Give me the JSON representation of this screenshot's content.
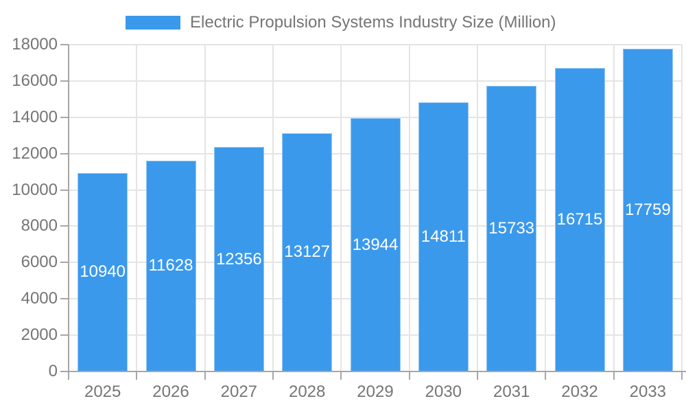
{
  "legend": {
    "label": "Electric Propulsion Systems Industry Size (Million)",
    "swatch_color": "#3B99EC"
  },
  "chart_data": {
    "type": "bar",
    "title": "Electric Propulsion Systems Industry Size (Million)",
    "series_name": "Electric Propulsion Systems Industry Size (Million)",
    "categories": [
      "2025",
      "2026",
      "2027",
      "2028",
      "2029",
      "2030",
      "2031",
      "2032",
      "2033"
    ],
    "values": [
      10940,
      11628,
      12356,
      13127,
      13944,
      14811,
      15733,
      16715,
      17759
    ],
    "xlabel": "",
    "ylabel": "",
    "ylim": [
      0,
      18000
    ],
    "ytick_interval": 2000,
    "ytick_labels": [
      "0",
      "2000",
      "4000",
      "6000",
      "8000",
      "10000",
      "12000",
      "14000",
      "16000",
      "18000"
    ],
    "grid": true,
    "legend_position": "top",
    "bar_color": "#3B99EC",
    "bar_value_label_color": "#FFFFFF",
    "grid_color": "#E4E4E4",
    "axis_color": "#A6A6A6",
    "tick_text_color": "#757575"
  }
}
